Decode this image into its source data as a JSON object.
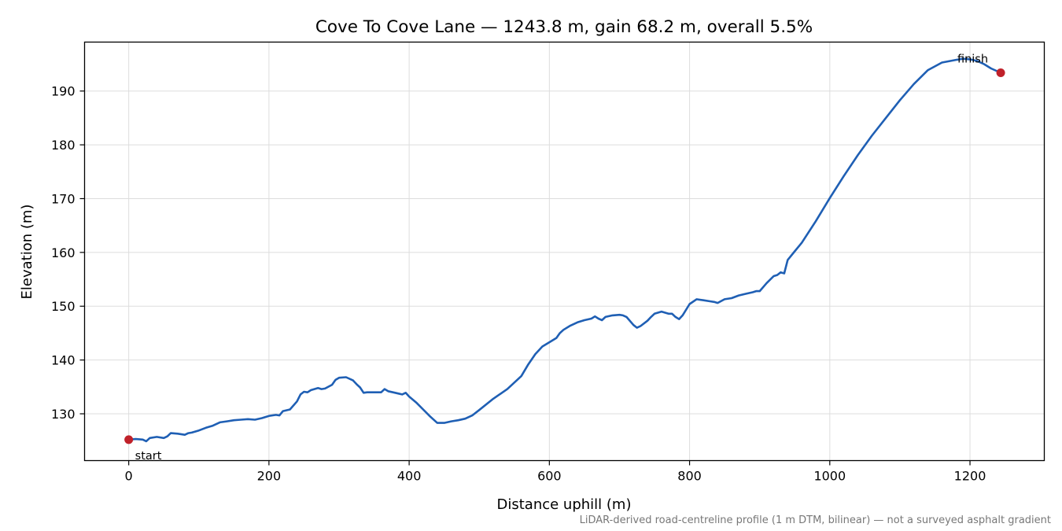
{
  "chart_data": {
    "type": "line",
    "title": "Cove To Cove Lane — 1243.8 m, gain 68.2 m, overall 5.5%",
    "xlabel": "Distance uphill (m)",
    "ylabel": "Elevation (m)",
    "xlim": [
      -63,
      1306
    ],
    "ylim": [
      121.3,
      199.1
    ],
    "xticks": [
      0,
      200,
      400,
      600,
      800,
      1000,
      1200
    ],
    "yticks": [
      130,
      140,
      150,
      160,
      170,
      180,
      190
    ],
    "grid": true,
    "line_color": "#1f5fb4",
    "marker_color": "#c0212a",
    "footnote": "LiDAR-derived road-centreline profile (1 m DTM, bilinear) — not a surveyed asphalt gradient",
    "annotations": [
      {
        "text": "start",
        "x": 0,
        "y": 125.2,
        "anchor": "below-right"
      },
      {
        "text": "finish",
        "x": 1243.8,
        "y": 193.4,
        "anchor": "above-left"
      }
    ],
    "markers": [
      {
        "name": "start",
        "x": 0,
        "y": 125.2
      },
      {
        "name": "finish",
        "x": 1243.8,
        "y": 193.4
      }
    ],
    "series": [
      {
        "x": [
          0,
          10,
          20,
          25,
          30,
          40,
          50,
          55,
          60,
          70,
          80,
          85,
          90,
          100,
          110,
          120,
          130,
          140,
          150,
          160,
          170,
          180,
          190,
          200,
          210,
          215,
          220,
          230,
          240,
          245,
          250,
          255,
          260,
          270,
          275,
          280,
          290,
          295,
          300,
          310,
          320,
          325,
          330,
          335,
          340,
          350,
          360,
          365,
          370,
          380,
          390,
          395,
          400,
          410,
          420,
          430,
          440,
          450,
          460,
          470,
          480,
          490,
          500,
          520,
          540,
          560,
          570,
          580,
          590,
          600,
          610,
          615,
          620,
          630,
          640,
          650,
          660,
          665,
          670,
          675,
          680,
          690,
          700,
          705,
          710,
          720,
          725,
          730,
          740,
          745,
          750,
          760,
          770,
          775,
          780,
          785,
          790,
          800,
          810,
          820,
          830,
          835,
          840,
          850,
          860,
          870,
          880,
          890,
          895,
          900,
          910,
          920,
          925,
          930,
          935,
          940,
          950,
          960,
          980,
          1000,
          1020,
          1040,
          1060,
          1080,
          1100,
          1120,
          1140,
          1160,
          1180,
          1190,
          1200,
          1210,
          1220,
          1230,
          1243.8
        ],
        "y": [
          125.2,
          125.3,
          125.2,
          124.9,
          125.5,
          125.7,
          125.5,
          125.8,
          126.4,
          126.3,
          126.1,
          126.4,
          126.5,
          126.9,
          127.4,
          127.8,
          128.4,
          128.6,
          128.8,
          128.9,
          129.0,
          128.9,
          129.2,
          129.6,
          129.8,
          129.7,
          130.5,
          130.8,
          132.3,
          133.6,
          134.1,
          134.0,
          134.4,
          134.8,
          134.6,
          134.7,
          135.4,
          136.3,
          136.7,
          136.8,
          136.2,
          135.5,
          134.9,
          133.9,
          134.0,
          134.0,
          134.0,
          134.6,
          134.2,
          133.9,
          133.6,
          133.9,
          133.2,
          132.1,
          130.8,
          129.5,
          128.3,
          128.3,
          128.6,
          128.8,
          129.1,
          129.7,
          130.7,
          132.8,
          134.6,
          137.0,
          139.2,
          141.1,
          142.5,
          143.3,
          144.1,
          145.0,
          145.6,
          146.4,
          147.0,
          147.4,
          147.7,
          148.1,
          147.7,
          147.4,
          148.0,
          148.3,
          148.4,
          148.3,
          148.0,
          146.5,
          146.0,
          146.3,
          147.3,
          148.0,
          148.6,
          149.0,
          148.6,
          148.6,
          148.0,
          147.6,
          148.3,
          150.4,
          151.3,
          151.1,
          150.9,
          150.8,
          150.6,
          151.3,
          151.5,
          152.0,
          152.3,
          152.6,
          152.8,
          152.8,
          154.3,
          155.6,
          155.8,
          156.3,
          156.1,
          158.6,
          160.2,
          161.8,
          165.8,
          170.1,
          174.2,
          178.1,
          181.7,
          185.0,
          188.3,
          191.3,
          193.9,
          195.3,
          195.8,
          196.0,
          195.9,
          195.6,
          195.0,
          194.2,
          193.4
        ]
      }
    ]
  }
}
